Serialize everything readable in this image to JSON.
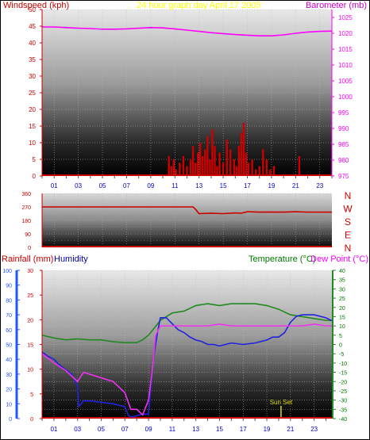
{
  "header": {
    "windspeed_label": "Windspeed (kph)",
    "graph_title": "24 hour graph day   April 17 2005",
    "barometer_label": "Barometer (mb)"
  },
  "lower_header": {
    "rainfall_label": "Rainfall (mm)",
    "humidity_label": "Humidity",
    "temperature_label": "Temperature (°C)",
    "dewpoint_label": "Dew Point (°C)"
  },
  "colors": {
    "windspeed": "#cc0000",
    "barometer": "#ff00ff",
    "title": "#ffff00",
    "direction": "#cc0000",
    "rainfall": "#cc0000",
    "humidity": "#0000cc",
    "temperature": "#007700",
    "dewpoint": "#ff00ff",
    "temp_line": "#228822",
    "humidity_line": "#2222dd",
    "dew_line": "#ee33ee",
    "axis_blue": "#2255ff",
    "sunset": "#dddd00"
  },
  "chart_data": [
    {
      "type": "line",
      "id": "wind_baro",
      "title": "24 hour graph day   April 17 2005",
      "xlabel": "",
      "ylabel": "Windspeed (kph)",
      "ylabel_right": "Barometer (mb)",
      "x_ticks": [
        "01",
        "03",
        "05",
        "07",
        "09",
        "11",
        "13",
        "15",
        "17",
        "19",
        "21",
        "23"
      ],
      "xlim": [
        0,
        24
      ],
      "ylim": [
        0,
        50
      ],
      "y_ticks": [
        "0",
        "5",
        "10",
        "15",
        "20",
        "25",
        "30",
        "35",
        "40",
        "45",
        "50"
      ],
      "y2lim": [
        975,
        1027.5
      ],
      "y2_ticks": [
        "975",
        "980",
        "985",
        "990",
        "995",
        "1000",
        "1005",
        "1010",
        "1015",
        "1020",
        "1025"
      ],
      "grid": true,
      "series": [
        {
          "name": "Barometer",
          "axis": "right",
          "x": [
            0,
            1,
            2,
            3,
            4,
            5,
            6,
            7,
            8,
            9,
            10,
            11,
            12,
            13,
            14,
            15,
            16,
            17,
            18,
            19,
            20,
            21,
            22,
            23,
            24
          ],
          "values": [
            1022,
            1022,
            1021.8,
            1021.6,
            1021.5,
            1021.3,
            1021.3,
            1021.4,
            1021.6,
            1021.8,
            1021.7,
            1021.4,
            1021,
            1020.6,
            1020.2,
            1019.9,
            1019.6,
            1019.4,
            1019.2,
            1019.2,
            1019.5,
            1020,
            1020.4,
            1020.6,
            1020.7
          ]
        },
        {
          "name": "Windspeed",
          "axis": "left",
          "style": "bars",
          "x": [
            10.5,
            10.7,
            10.9,
            11.1,
            11.4,
            11.7,
            12,
            12.3,
            12.5,
            12.7,
            12.9,
            13.1,
            13.3,
            13.5,
            13.7,
            13.9,
            14.1,
            14.3,
            14.5,
            14.7,
            15,
            15.3,
            15.6,
            15.9,
            16.1,
            16.3,
            16.5,
            16.7,
            16.9,
            17.1,
            17.4,
            17.7,
            18,
            18.3,
            18.6,
            18.9,
            19.2,
            21.3
          ],
          "values": [
            6,
            3,
            5,
            2,
            4,
            6,
            3,
            5,
            9,
            4,
            7,
            10,
            6,
            8,
            12,
            5,
            14,
            9,
            3,
            7,
            4,
            11,
            8,
            5,
            3,
            9,
            13,
            16,
            7,
            4,
            5,
            2,
            3,
            8,
            5,
            2,
            3,
            6
          ]
        }
      ]
    },
    {
      "type": "line",
      "id": "wind_direction",
      "title": "",
      "xlabel": "",
      "ylabel": "",
      "ylim": [
        0,
        360
      ],
      "y_ticks": [
        "0",
        "90",
        "180",
        "270",
        "360"
      ],
      "y_ticks_minor": [
        "45",
        "135",
        "225",
        "315"
      ],
      "compass_labels": [
        "N",
        "W",
        "S",
        "E",
        "N"
      ],
      "xlim": [
        0,
        24
      ],
      "series": [
        {
          "name": "Wind direction",
          "x": [
            0,
            12.5,
            12.7,
            13,
            14,
            15,
            16,
            16.5,
            17,
            18,
            19,
            20,
            21,
            22,
            23,
            24
          ],
          "values": [
            270,
            270,
            255,
            225,
            228,
            225,
            230,
            228,
            238,
            235,
            236,
            235,
            238,
            235,
            235,
            235
          ]
        }
      ]
    },
    {
      "type": "line",
      "id": "temp_hum_rain",
      "title": "",
      "xlabel": "",
      "ylabel": "Rainfall (mm)",
      "ylabel_right": "Temperature (°C)",
      "x_ticks": [
        "01",
        "03",
        "05",
        "07",
        "09",
        "11",
        "13",
        "15",
        "17",
        "19",
        "21",
        "23"
      ],
      "xlim": [
        0,
        24.5
      ],
      "humidity_ylim": [
        0,
        100
      ],
      "humidity_ticks": [
        "0",
        "10",
        "20",
        "30",
        "40",
        "50",
        "60",
        "70",
        "80",
        "90",
        "100"
      ],
      "rain_ylim": [
        0,
        30
      ],
      "rain_ticks": [
        "0",
        "5",
        "10",
        "15",
        "20",
        "25",
        "30"
      ],
      "temp_ylim": [
        -40,
        40
      ],
      "temp_ticks": [
        "40",
        "35",
        "30",
        "25",
        "20",
        "15",
        "10",
        "5",
        "0",
        "-5",
        "-10",
        "-15",
        "-20",
        "-25",
        "-30",
        "-35",
        "-40"
      ],
      "annotations": [
        {
          "label": "Sun Set",
          "x": 20.2
        }
      ],
      "series": [
        {
          "name": "Temperature",
          "axis": "temp",
          "x": [
            0,
            1,
            2,
            3,
            4,
            5,
            6,
            7,
            8,
            8.5,
            9,
            9.5,
            10,
            11,
            12,
            13,
            14,
            15,
            16,
            17,
            18,
            19,
            20,
            21,
            22,
            23,
            24,
            24.5
          ],
          "values": [
            5,
            3.5,
            2.5,
            3,
            2.5,
            2.5,
            1.5,
            1,
            1,
            2.5,
            5,
            9,
            13,
            17,
            18,
            21,
            22,
            21,
            22,
            22,
            22,
            21,
            19,
            16,
            15,
            14,
            13,
            13
          ]
        },
        {
          "name": "Humidity",
          "axis": "humidity",
          "x": [
            0,
            0.5,
            1,
            1.5,
            2,
            2.5,
            3,
            3.1,
            3.5,
            4,
            5,
            6,
            7,
            7.3,
            7.6,
            8,
            8.5,
            9,
            9.4,
            9.8,
            10,
            10.5,
            11,
            11.5,
            12,
            12.5,
            13,
            13.5,
            14,
            14.5,
            15,
            16,
            17,
            18,
            19,
            19.5,
            20,
            20.5,
            21,
            21.5,
            22,
            23,
            24,
            24.5
          ],
          "values": [
            45,
            42,
            40,
            36,
            33,
            30,
            22,
            8,
            12,
            12,
            11,
            10,
            8,
            2,
            1,
            2,
            3,
            3,
            40,
            60,
            68,
            68,
            64,
            60,
            58,
            55,
            53,
            52,
            50,
            50,
            49,
            51,
            50,
            51,
            53,
            55,
            55,
            58,
            65,
            69,
            70,
            70,
            68,
            66
          ]
        },
        {
          "name": "Dew Point",
          "axis": "temp",
          "x": [
            0,
            1,
            2,
            3,
            3.5,
            4,
            5,
            6,
            7,
            7.5,
            8,
            8.5,
            9,
            9.3,
            9.6,
            10,
            11,
            12,
            13,
            14,
            15,
            16,
            17,
            18,
            19,
            20,
            21,
            22,
            23,
            24,
            24.5
          ],
          "values": [
            -5,
            -10,
            -14,
            -20,
            -15,
            -16,
            -18,
            -20,
            -26,
            -35,
            -35,
            -38,
            -30,
            -15,
            5,
            10,
            10,
            10,
            10,
            10,
            11,
            10,
            10,
            10,
            10,
            10,
            10,
            10,
            11,
            10,
            10
          ]
        },
        {
          "name": "Rainfall",
          "axis": "rain",
          "x": [
            0,
            24.5
          ],
          "values": [
            0,
            0
          ]
        }
      ]
    }
  ]
}
